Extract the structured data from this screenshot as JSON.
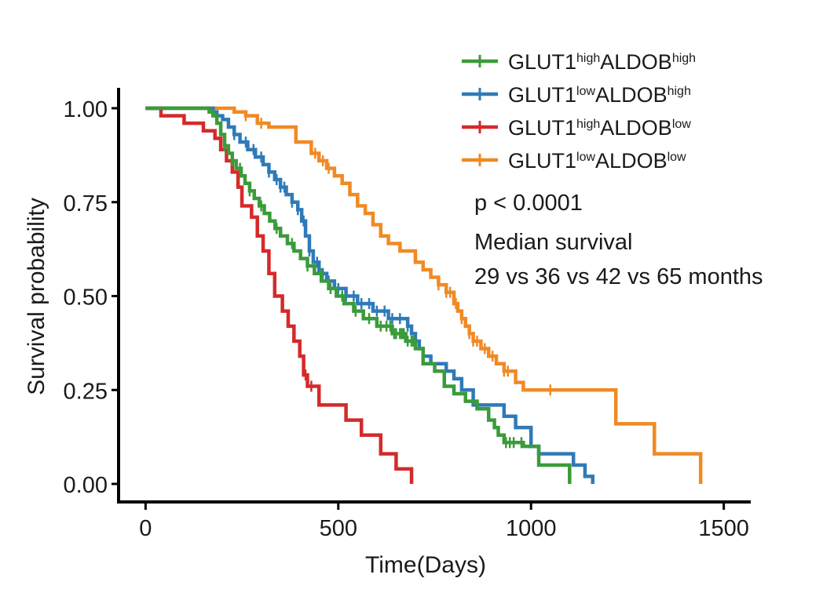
{
  "chart_data": {
    "type": "line",
    "subtype": "kaplan-meier",
    "title": "",
    "xlabel": "Time(Days)",
    "ylabel": "Survival probability",
    "xlim": [
      -70,
      1570
    ],
    "ylim": [
      0,
      1
    ],
    "x_ticks": [
      0,
      500,
      1000,
      1500
    ],
    "x_tick_labels": [
      "0",
      "500",
      "1000",
      "1500"
    ],
    "y_ticks": [
      0,
      0.25,
      0.5,
      0.75,
      1.0
    ],
    "y_tick_labels": [
      "0.00",
      "0.25",
      "0.50",
      "0.75",
      "1.00"
    ],
    "grid": false,
    "legend_position": "top-right",
    "annotations": {
      "pvalue": "p < 0.0001",
      "median_title": "Median survival",
      "median_values": "29 vs 36 vs 42 vs 65 months"
    },
    "series": [
      {
        "name": "GLUT1highALDOBhigh",
        "legend": {
          "base": "GLUT1",
          "sup1": "high",
          "mid": "ALDOB",
          "sup2": "high"
        },
        "color": "#3a9b3a",
        "steps": [
          [
            0,
            1.0
          ],
          [
            165,
            0.99
          ],
          [
            175,
            0.98
          ],
          [
            185,
            0.96
          ],
          [
            195,
            0.93
          ],
          [
            205,
            0.9
          ],
          [
            215,
            0.88
          ],
          [
            225,
            0.86
          ],
          [
            235,
            0.84
          ],
          [
            248,
            0.82
          ],
          [
            258,
            0.8
          ],
          [
            270,
            0.78
          ],
          [
            282,
            0.76
          ],
          [
            295,
            0.74
          ],
          [
            308,
            0.72
          ],
          [
            322,
            0.7
          ],
          [
            336,
            0.68
          ],
          [
            350,
            0.66
          ],
          [
            368,
            0.64
          ],
          [
            385,
            0.62
          ],
          [
            402,
            0.6
          ],
          [
            420,
            0.58
          ],
          [
            438,
            0.56
          ],
          [
            456,
            0.54
          ],
          [
            475,
            0.52
          ],
          [
            495,
            0.5
          ],
          [
            515,
            0.48
          ],
          [
            540,
            0.46
          ],
          [
            565,
            0.44
          ],
          [
            600,
            0.42
          ],
          [
            640,
            0.4
          ],
          [
            675,
            0.38
          ],
          [
            700,
            0.36
          ],
          [
            720,
            0.32
          ],
          [
            750,
            0.3
          ],
          [
            775,
            0.26
          ],
          [
            800,
            0.24
          ],
          [
            830,
            0.22
          ],
          [
            860,
            0.2
          ],
          [
            890,
            0.17
          ],
          [
            905,
            0.15
          ],
          [
            915,
            0.13
          ],
          [
            930,
            0.11
          ],
          [
            980,
            0.1
          ],
          [
            1020,
            0.05
          ],
          [
            1100,
            0.0
          ]
        ],
        "censor_x": [
          205,
          225,
          245,
          270,
          300,
          340,
          380,
          420,
          455,
          480,
          510,
          545,
          580,
          610,
          625,
          635,
          645,
          650,
          660,
          665,
          670,
          680,
          690,
          695,
          935,
          945,
          955,
          975
        ]
      },
      {
        "name": "GLUT1lowALDOBhigh",
        "legend": {
          "base": "GLUT1",
          "sup1": "low",
          "mid": "ALDOB",
          "sup2": "high"
        },
        "color": "#2f7ab8",
        "steps": [
          [
            0,
            1.0
          ],
          [
            175,
            0.99
          ],
          [
            185,
            0.98
          ],
          [
            200,
            0.97
          ],
          [
            215,
            0.95
          ],
          [
            230,
            0.93
          ],
          [
            245,
            0.91
          ],
          [
            265,
            0.89
          ],
          [
            285,
            0.87
          ],
          [
            305,
            0.85
          ],
          [
            320,
            0.83
          ],
          [
            335,
            0.81
          ],
          [
            350,
            0.79
          ],
          [
            365,
            0.77
          ],
          [
            380,
            0.75
          ],
          [
            395,
            0.73
          ],
          [
            405,
            0.7
          ],
          [
            415,
            0.66
          ],
          [
            425,
            0.62
          ],
          [
            435,
            0.59
          ],
          [
            450,
            0.56
          ],
          [
            470,
            0.54
          ],
          [
            490,
            0.52
          ],
          [
            520,
            0.5
          ],
          [
            550,
            0.48
          ],
          [
            590,
            0.46
          ],
          [
            630,
            0.44
          ],
          [
            680,
            0.42
          ],
          [
            690,
            0.4
          ],
          [
            700,
            0.38
          ],
          [
            710,
            0.36
          ],
          [
            720,
            0.34
          ],
          [
            740,
            0.32
          ],
          [
            780,
            0.3
          ],
          [
            800,
            0.28
          ],
          [
            820,
            0.25
          ],
          [
            850,
            0.21
          ],
          [
            930,
            0.18
          ],
          [
            960,
            0.15
          ],
          [
            1000,
            0.1
          ],
          [
            1020,
            0.08
          ],
          [
            1110,
            0.05
          ],
          [
            1140,
            0.02
          ],
          [
            1160,
            0.0
          ]
        ],
        "censor_x": [
          230,
          260,
          280,
          300,
          320,
          340,
          350,
          360,
          380,
          395,
          410,
          425,
          445,
          460,
          475,
          500,
          520,
          540,
          560,
          580,
          600,
          620,
          640,
          660,
          680,
          700
        ]
      },
      {
        "name": "GLUT1highALDOBlow",
        "legend": {
          "base": "GLUT1",
          "sup1": "high",
          "mid": "ALDOB",
          "sup2": "low"
        },
        "color": "#d42a2a",
        "steps": [
          [
            0,
            1.0
          ],
          [
            40,
            0.98
          ],
          [
            100,
            0.96
          ],
          [
            150,
            0.94
          ],
          [
            180,
            0.92
          ],
          [
            195,
            0.89
          ],
          [
            210,
            0.86
          ],
          [
            225,
            0.83
          ],
          [
            240,
            0.79
          ],
          [
            250,
            0.74
          ],
          [
            275,
            0.71
          ],
          [
            290,
            0.66
          ],
          [
            305,
            0.62
          ],
          [
            320,
            0.56
          ],
          [
            335,
            0.5
          ],
          [
            355,
            0.46
          ],
          [
            370,
            0.42
          ],
          [
            385,
            0.38
          ],
          [
            400,
            0.34
          ],
          [
            410,
            0.29
          ],
          [
            420,
            0.26
          ],
          [
            450,
            0.21
          ],
          [
            520,
            0.17
          ],
          [
            560,
            0.13
          ],
          [
            610,
            0.08
          ],
          [
            650,
            0.04
          ],
          [
            690,
            0.0
          ]
        ],
        "censor_x": [
          415,
          430
        ]
      },
      {
        "name": "GLUT1lowALDOBlow",
        "legend": {
          "base": "GLUT1",
          "sup1": "low",
          "mid": "ALDOB",
          "sup2": "low"
        },
        "color": "#f08a24",
        "steps": [
          [
            0,
            1.0
          ],
          [
            230,
            0.99
          ],
          [
            260,
            0.98
          ],
          [
            290,
            0.96
          ],
          [
            320,
            0.95
          ],
          [
            390,
            0.91
          ],
          [
            430,
            0.88
          ],
          [
            450,
            0.86
          ],
          [
            470,
            0.84
          ],
          [
            490,
            0.82
          ],
          [
            510,
            0.8
          ],
          [
            530,
            0.77
          ],
          [
            550,
            0.74
          ],
          [
            570,
            0.72
          ],
          [
            590,
            0.69
          ],
          [
            610,
            0.66
          ],
          [
            630,
            0.64
          ],
          [
            660,
            0.62
          ],
          [
            700,
            0.59
          ],
          [
            720,
            0.57
          ],
          [
            740,
            0.55
          ],
          [
            760,
            0.53
          ],
          [
            780,
            0.51
          ],
          [
            800,
            0.48
          ],
          [
            810,
            0.46
          ],
          [
            820,
            0.44
          ],
          [
            830,
            0.42
          ],
          [
            840,
            0.4
          ],
          [
            850,
            0.38
          ],
          [
            870,
            0.36
          ],
          [
            890,
            0.34
          ],
          [
            910,
            0.32
          ],
          [
            930,
            0.3
          ],
          [
            960,
            0.27
          ],
          [
            980,
            0.25
          ],
          [
            1220,
            0.16
          ],
          [
            1320,
            0.08
          ],
          [
            1440,
            0.0
          ]
        ],
        "censor_x": [
          260,
          300,
          440,
          460,
          475,
          760,
          780,
          790,
          805,
          820,
          840,
          850,
          860,
          880,
          900,
          930,
          940,
          1050
        ]
      }
    ]
  }
}
